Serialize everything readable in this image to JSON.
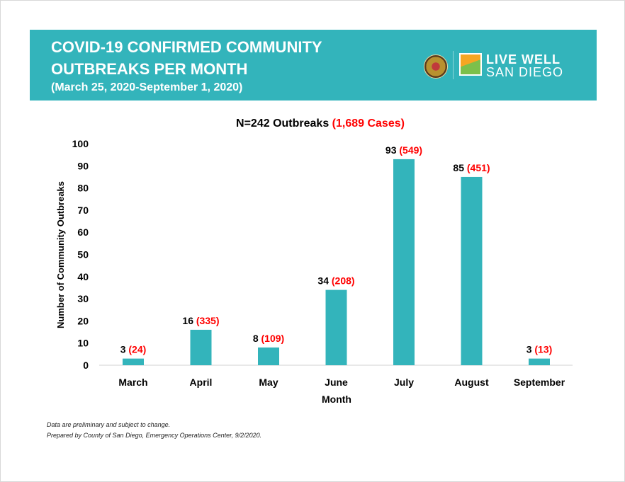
{
  "header": {
    "title_line1": "COVID-19 CONFIRMED COMMUNITY",
    "title_line2": "OUTBREAKS PER MONTH",
    "date_range": "(March 25, 2020-September 1, 2020)",
    "logo_text_line1": "LIVE WELL",
    "logo_text_line2": "SAN DIEGO",
    "background_color": "#33b4bb"
  },
  "chart_data": {
    "type": "bar",
    "title": "N=242 Outbreaks",
    "title_highlight": "(1,689 Cases)",
    "xlabel": "Month",
    "ylabel": "Number of Community Outbreaks",
    "ylim": [
      0,
      100
    ],
    "yticks": [
      0,
      10,
      20,
      30,
      40,
      50,
      60,
      70,
      80,
      90,
      100
    ],
    "grid": false,
    "categories": [
      "March",
      "April",
      "May",
      "June",
      "July",
      "August",
      "September"
    ],
    "values": [
      3,
      16,
      8,
      34,
      93,
      85,
      3
    ],
    "case_labels": [
      "(24)",
      "(335)",
      "(109)",
      "(208)",
      "(549)",
      "(451)",
      "(13)"
    ],
    "bar_color": "#33b4bb",
    "highlight_color": "#ff0000"
  },
  "footer": {
    "note1": "Data are preliminary and subject to change.",
    "note2": "Prepared by County of San Diego, Emergency Operations Center, 9/2/2020."
  }
}
